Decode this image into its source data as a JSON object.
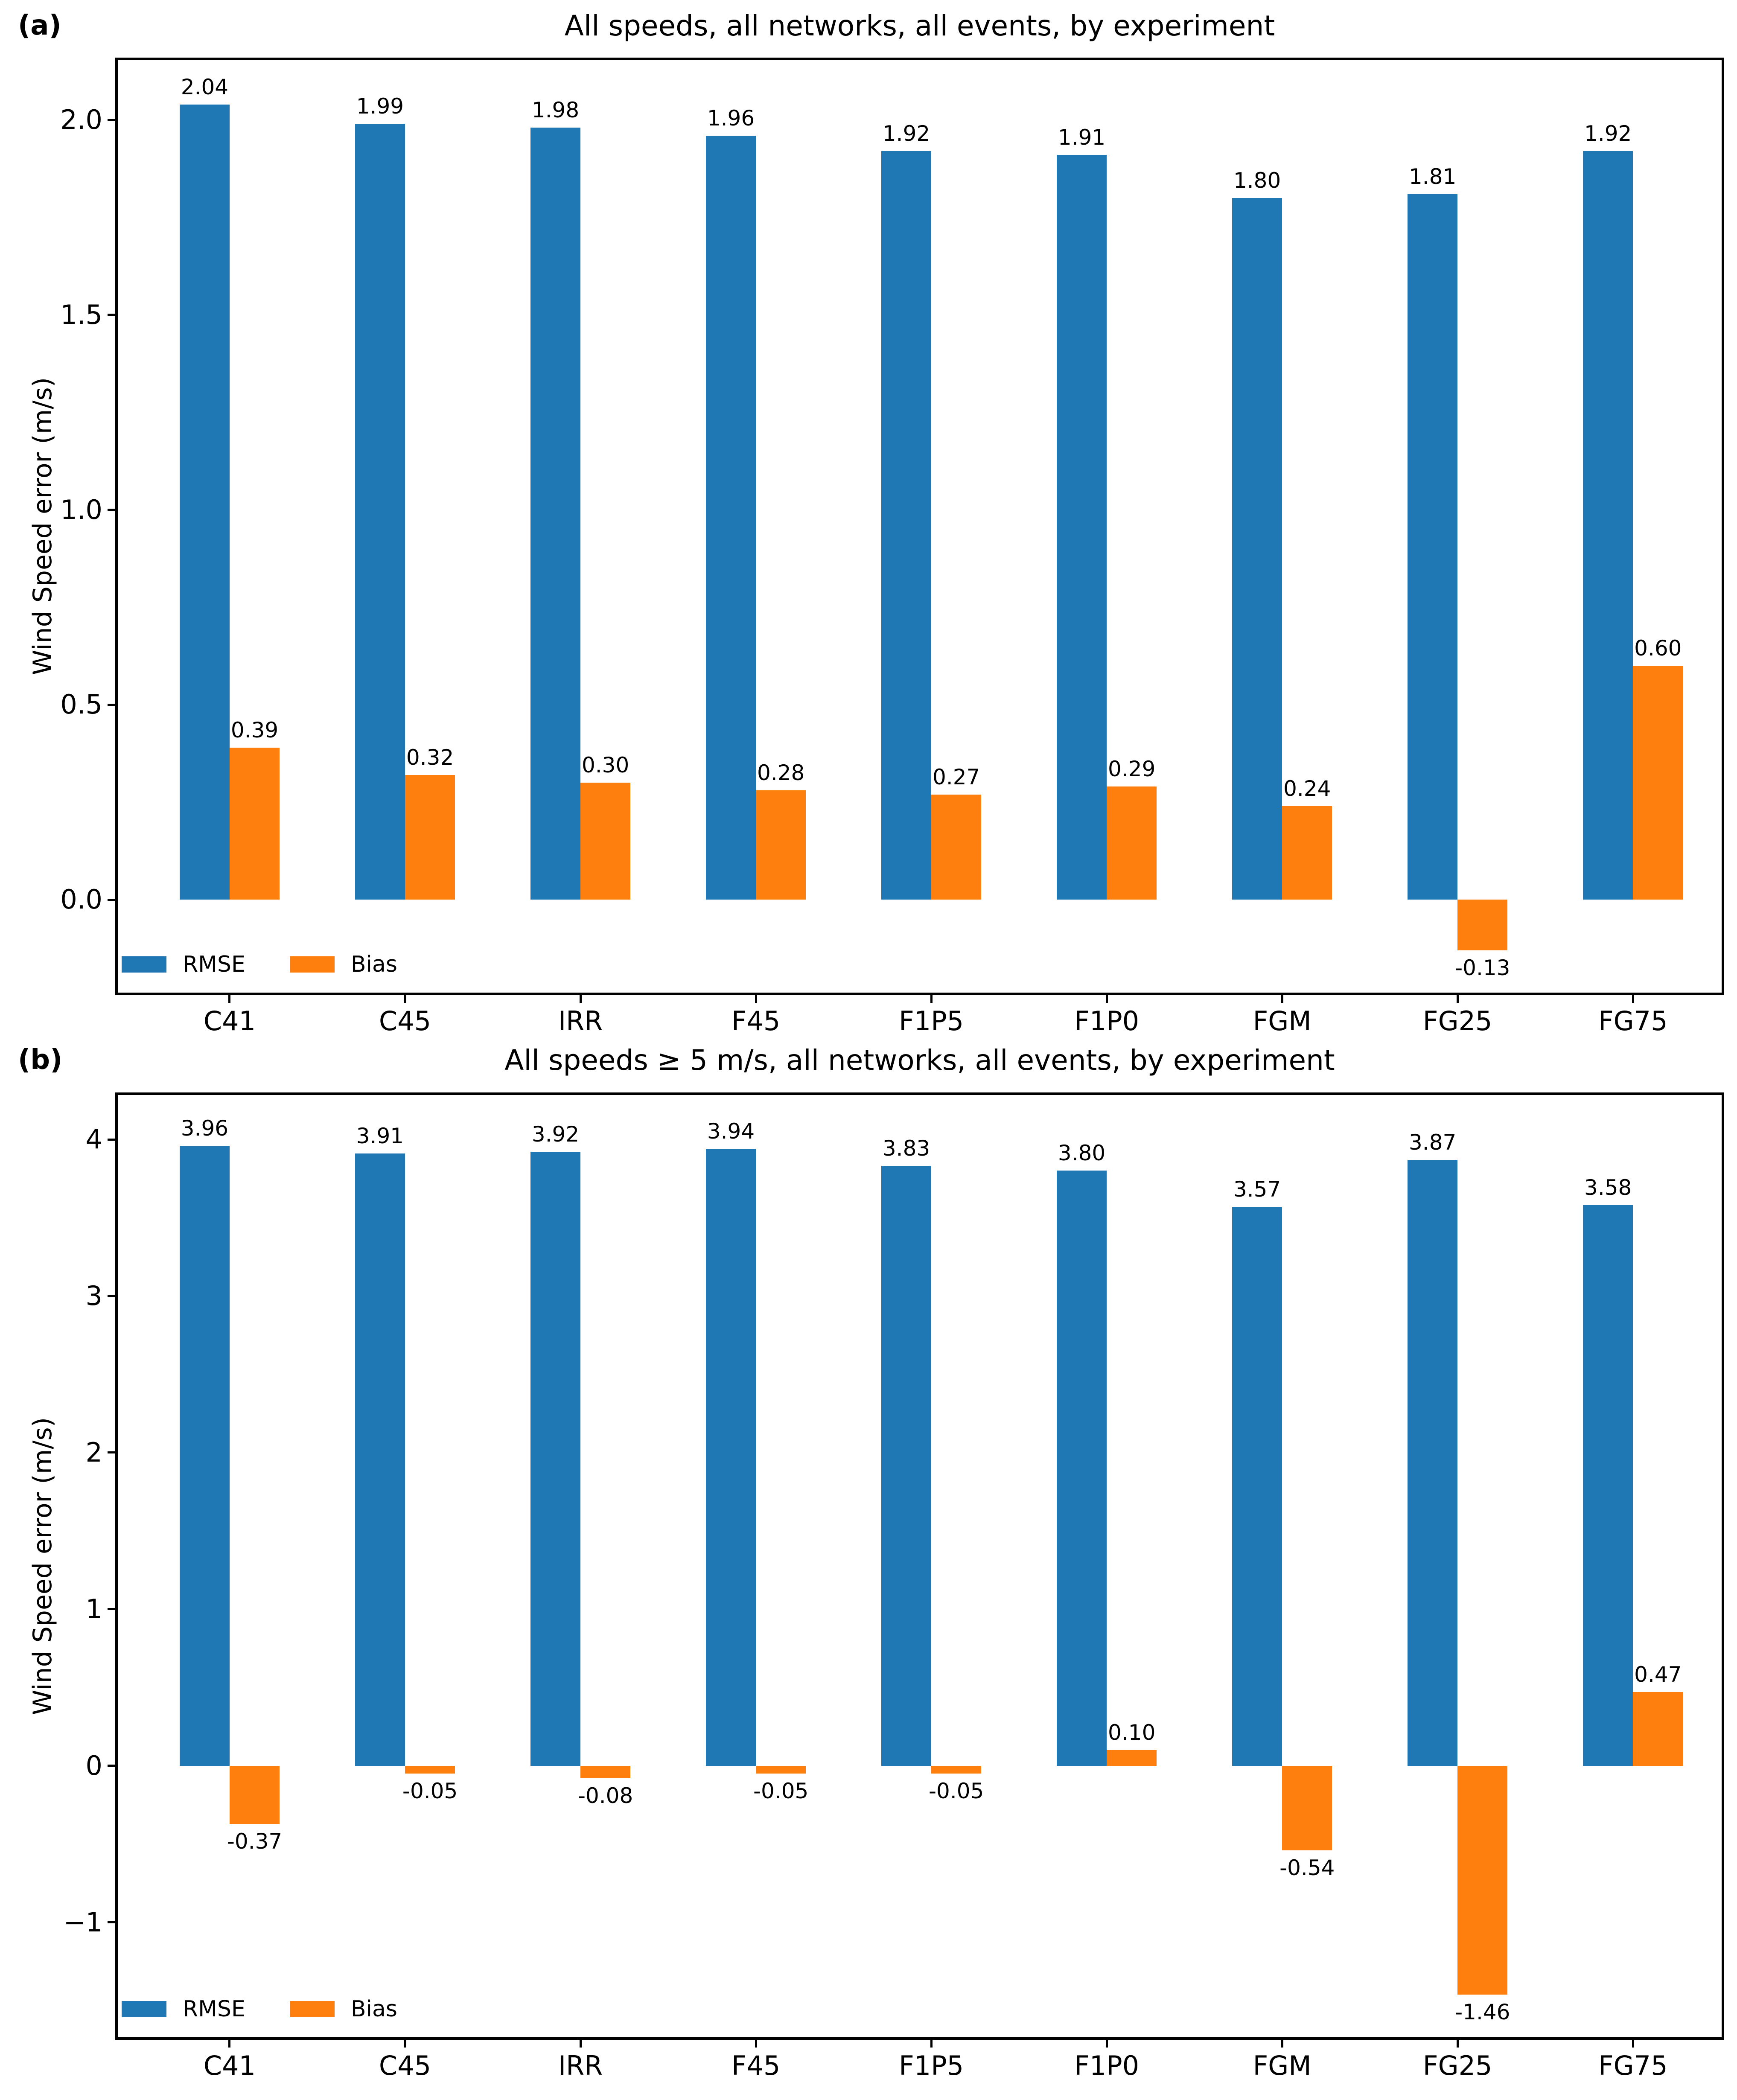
{
  "figure": {
    "background": "#ffffff"
  },
  "chart_data": [
    {
      "panel": "(a)",
      "type": "bar",
      "title": "All speeds, all networks, all events, by experiment",
      "ylabel": "Wind Speed error (m/s)",
      "categories": [
        "C41",
        "C45",
        "IRR",
        "F45",
        "F1P5",
        "F1P0",
        "FGM",
        "FG25",
        "FG75"
      ],
      "series": [
        {
          "name": "RMSE",
          "color": "#1f77b4",
          "values": [
            2.04,
            1.99,
            1.98,
            1.96,
            1.92,
            1.91,
            1.8,
            1.81,
            1.92
          ]
        },
        {
          "name": "Bias",
          "color": "#ff7f0e",
          "values": [
            0.39,
            0.32,
            0.3,
            0.28,
            0.27,
            0.29,
            0.24,
            -0.13,
            0.6
          ]
        }
      ],
      "bar_value_labels": [
        [
          "2.04",
          "1.99",
          "1.98",
          "1.96",
          "1.92",
          "1.91",
          "1.80",
          "1.81",
          "1.92"
        ],
        [
          "0.39",
          "0.32",
          "0.30",
          "0.28",
          "0.27",
          "0.29",
          "0.24",
          "-0.13",
          "0.60"
        ]
      ],
      "yticks": [
        0.0,
        0.5,
        1.0,
        1.5,
        2.0
      ],
      "ytick_labels": [
        "0.0",
        "0.5",
        "1.0",
        "1.5",
        "2.0"
      ],
      "ylim": [
        -0.245,
        2.16
      ],
      "grid": false,
      "legend_position": "lower left"
    },
    {
      "panel": "(b)",
      "type": "bar",
      "title": "All speeds ≥ 5 m/s, all networks, all events, by experiment",
      "ylabel": "Wind Speed error (m/s)",
      "categories": [
        "C41",
        "C45",
        "IRR",
        "F45",
        "F1P5",
        "F1P0",
        "FGM",
        "FG25",
        "FG75"
      ],
      "series": [
        {
          "name": "RMSE",
          "color": "#1f77b4",
          "values": [
            3.96,
            3.91,
            3.92,
            3.94,
            3.83,
            3.8,
            3.57,
            3.87,
            3.58
          ]
        },
        {
          "name": "Bias",
          "color": "#ff7f0e",
          "values": [
            -0.37,
            -0.05,
            -0.08,
            -0.05,
            -0.05,
            0.1,
            -0.54,
            -1.46,
            0.47
          ]
        }
      ],
      "bar_value_labels": [
        [
          "3.96",
          "3.91",
          "3.92",
          "3.94",
          "3.83",
          "3.80",
          "3.57",
          "3.87",
          "3.58"
        ],
        [
          "-0.37",
          "-0.05",
          "-0.08",
          "-0.05",
          "-0.05",
          "0.10",
          "-0.54",
          "-1.46",
          "0.47"
        ]
      ],
      "yticks": [
        -1,
        0,
        1,
        2,
        3,
        4
      ],
      "ytick_labels": [
        "−1",
        "0",
        "1",
        "2",
        "3",
        "4"
      ],
      "ylim": [
        -1.75,
        4.3
      ],
      "grid": false,
      "legend_position": "lower left"
    }
  ]
}
